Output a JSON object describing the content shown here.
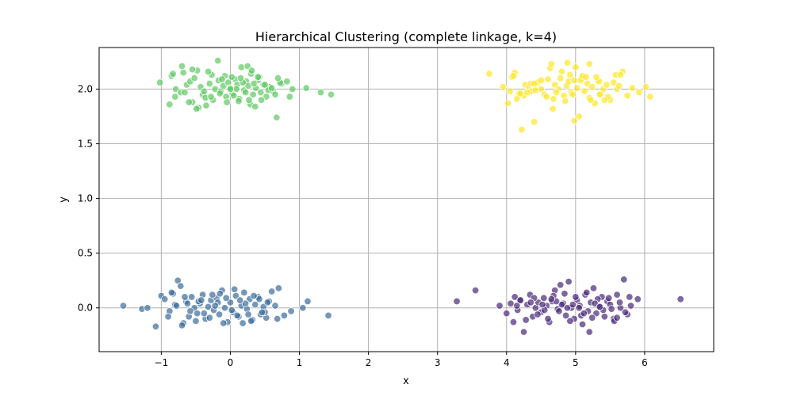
{
  "chart_data": {
    "type": "scatter",
    "title": "Hierarchical Clustering (complete linkage, k=4)",
    "xlabel": "x",
    "ylabel": "y",
    "xlim": [
      -1.9,
      7.0
    ],
    "ylim": [
      -0.4,
      2.38
    ],
    "xticks": [
      -1,
      0,
      1,
      2,
      3,
      4,
      5,
      6
    ],
    "yticks": [
      0.0,
      0.5,
      1.0,
      1.5,
      2.0
    ],
    "xtick_labels": [
      "−1",
      "0",
      "1",
      "2",
      "3",
      "4",
      "5",
      "6"
    ],
    "ytick_labels": [
      "0.0",
      "0.5",
      "1.0",
      "1.5",
      "2.0"
    ],
    "grid": true,
    "legend": "none",
    "point_alpha": 0.7,
    "series": [
      {
        "color": "#5ec962",
        "x": [
          -1.02,
          -0.85,
          -0.79,
          -0.72,
          -0.68,
          -0.63,
          -0.58,
          -0.52,
          -0.48,
          -0.43,
          -0.4,
          -0.36,
          -0.3,
          -0.27,
          -0.22,
          -0.18,
          -0.14,
          -0.1,
          -0.06,
          -0.03,
          0.0,
          0.03,
          0.07,
          0.1,
          0.13,
          0.16,
          0.2,
          0.23,
          0.26,
          0.3,
          0.33,
          0.37,
          0.4,
          0.44,
          0.48,
          0.52,
          0.57,
          0.62,
          0.67,
          0.74,
          0.82,
          0.9,
          1.1,
          1.31,
          1.46,
          -0.88,
          -0.8,
          -0.66,
          -0.55,
          -0.46,
          -0.35,
          -0.25,
          -0.15,
          -0.05,
          0.05,
          0.12,
          0.22,
          0.29,
          0.36,
          0.45,
          0.55,
          0.65,
          0.86,
          -0.6,
          -0.49,
          -0.38,
          -0.28,
          -0.17,
          -0.08,
          0.02,
          0.09,
          0.18,
          0.27,
          0.34,
          0.42,
          0.5,
          0.6,
          0.72,
          -0.7,
          -0.32,
          0.0,
          0.25,
          0.4,
          -0.12,
          0.15,
          0.31,
          -0.55,
          0.69,
          -0.83
        ],
        "y": [
          2.06,
          2.12,
          2.0,
          1.97,
          2.15,
          2.04,
          2.07,
          2.1,
          2.17,
          2.02,
          1.95,
          1.92,
          2.05,
          2.13,
          2.0,
          2.26,
          1.98,
          2.03,
          1.93,
          2.06,
          2.01,
          1.96,
          2.09,
          2.04,
          1.91,
          2.2,
          1.99,
          2.07,
          2.03,
          2.14,
          1.95,
          2.01,
          2.08,
          1.97,
          2.04,
          1.93,
          2.02,
          1.98,
          1.74,
          2.05,
          2.07,
          2.0,
          2.01,
          1.97,
          1.95,
          1.86,
          1.93,
          1.97,
          1.88,
          1.83,
          1.85,
          1.9,
          1.96,
          1.88,
          1.94,
          1.89,
          1.97,
          1.86,
          1.84,
          1.9,
          1.99,
          1.95,
          1.93,
          1.88,
          1.82,
          1.98,
          1.93,
          2.08,
          2.12,
          2.11,
          2.0,
          2.06,
          1.9,
          2.05,
          2.11,
          2.04,
          2.01,
          2.06,
          2.21,
          2.16,
          2.0,
          2.21,
          2.11,
          2.09,
          2.1,
          2.17,
          2.18,
          2.1,
          2.14
        ]
      },
      {
        "color": "#fde725",
        "x": [
          3.75,
          3.95,
          4.02,
          4.08,
          4.12,
          4.18,
          4.22,
          4.27,
          4.32,
          4.36,
          4.4,
          4.45,
          4.5,
          4.55,
          4.6,
          4.63,
          4.67,
          4.7,
          4.75,
          4.8,
          4.83,
          4.87,
          4.9,
          4.94,
          4.98,
          5.02,
          5.05,
          5.09,
          5.13,
          5.17,
          5.2,
          5.24,
          5.28,
          5.32,
          5.36,
          5.4,
          5.45,
          5.5,
          5.55,
          5.6,
          5.68,
          5.75,
          5.82,
          5.92,
          6.02,
          6.08,
          4.05,
          4.15,
          4.25,
          4.35,
          4.42,
          4.58,
          4.72,
          4.85,
          4.96,
          5.07,
          5.22,
          5.34,
          5.47,
          5.63,
          4.3,
          4.5,
          4.68,
          4.78,
          4.92,
          5.1,
          5.3,
          5.42,
          5.58,
          4.1,
          4.2,
          4.4,
          4.65,
          5.0,
          4.98,
          5.15,
          5.35,
          5.65,
          5.2,
          4.88
        ],
        "y": [
          2.14,
          2.02,
          1.87,
          2.11,
          2.15,
          1.96,
          1.63,
          2.04,
          2.01,
          1.98,
          1.7,
          2.06,
          2.0,
          1.95,
          2.09,
          2.19,
          1.82,
          2.04,
          2.0,
          2.16,
          1.94,
          2.03,
          2.07,
          1.97,
          1.71,
          2.01,
          1.75,
          2.1,
          1.98,
          2.05,
          1.92,
          2.02,
          1.87,
          2.08,
          1.96,
          2.0,
          2.04,
          1.9,
          2.06,
          2.0,
          2.16,
          1.94,
          2.01,
          1.97,
          2.02,
          1.93,
          1.98,
          1.91,
          1.94,
          2.05,
          1.99,
          1.93,
          1.97,
          1.89,
          1.95,
          2.08,
          1.9,
          2.07,
          1.93,
          2.03,
          1.97,
          2.08,
          1.91,
          2.1,
          2.13,
          2.12,
          2.11,
          1.9,
          2.13,
          2.12,
          1.96,
          2.05,
          2.23,
          2.2,
          2.08,
          2.11,
          1.95,
          2.13,
          2.23,
          2.24
        ]
      },
      {
        "color": "#3b6c9a",
        "x": [
          -1.55,
          -1.28,
          -1.2,
          -1.08,
          -1.0,
          -0.95,
          -0.88,
          -0.83,
          -0.8,
          -0.76,
          -0.72,
          -0.68,
          -0.64,
          -0.6,
          -0.56,
          -0.52,
          -0.48,
          -0.44,
          -0.4,
          -0.36,
          -0.32,
          -0.28,
          -0.24,
          -0.2,
          -0.16,
          -0.12,
          -0.08,
          -0.04,
          0.0,
          0.04,
          0.08,
          0.12,
          0.16,
          0.2,
          0.24,
          0.28,
          0.32,
          0.36,
          0.4,
          0.44,
          0.48,
          0.52,
          0.56,
          0.6,
          0.65,
          0.7,
          0.78,
          0.88,
          1.05,
          1.12,
          1.42,
          -0.9,
          -0.7,
          -0.5,
          -0.3,
          -0.1,
          0.1,
          0.3,
          0.5,
          0.68,
          -0.78,
          -0.58,
          -0.38,
          -0.18,
          0.02,
          0.22,
          0.42,
          -0.66,
          -0.46,
          -0.26,
          -0.06,
          0.14,
          0.34,
          0.54,
          -0.85,
          -0.15,
          0.06,
          0.18,
          -0.62,
          0.46,
          -0.42,
          0.26,
          -0.22
        ],
        "y": [
          0.02,
          -0.01,
          0.0,
          -0.17,
          0.11,
          0.08,
          -0.03,
          0.13,
          0.03,
          0.25,
          0.2,
          -0.14,
          0.06,
          -0.08,
          0.1,
          0.0,
          -0.05,
          0.04,
          0.12,
          -0.1,
          0.01,
          0.07,
          -0.02,
          0.09,
          -0.06,
          0.16,
          0.0,
          -0.13,
          0.05,
          -0.04,
          0.11,
          -0.08,
          0.02,
          0.14,
          -0.01,
          0.08,
          -0.11,
          0.03,
          0.1,
          -0.06,
          0.01,
          -0.09,
          0.06,
          0.15,
          0.02,
          0.18,
          -0.07,
          -0.03,
          0.0,
          0.06,
          -0.07,
          -0.08,
          -0.16,
          -0.12,
          -0.09,
          -0.14,
          -0.07,
          -0.12,
          -0.04,
          -0.1,
          0.02,
          -0.03,
          -0.05,
          0.05,
          -0.02,
          0.04,
          0.08,
          0.1,
          0.06,
          0.12,
          0.09,
          0.07,
          0.11,
          0.05,
          0.14,
          0.13,
          0.17,
          -0.14,
          0.04,
          -0.04,
          0.07,
          -0.06,
          0.02
        ]
      },
      {
        "color": "#482878",
        "x": [
          3.28,
          3.55,
          3.9,
          4.0,
          4.06,
          4.12,
          4.16,
          4.2,
          4.25,
          4.3,
          4.34,
          4.38,
          4.42,
          4.46,
          4.5,
          4.54,
          4.58,
          4.62,
          4.66,
          4.7,
          4.74,
          4.78,
          4.82,
          4.86,
          4.9,
          4.94,
          4.98,
          5.02,
          5.06,
          5.1,
          5.14,
          5.18,
          5.22,
          5.26,
          5.3,
          5.34,
          5.38,
          5.42,
          5.46,
          5.5,
          5.55,
          5.6,
          5.65,
          5.7,
          5.75,
          5.8,
          5.9,
          6.52,
          4.1,
          4.28,
          4.45,
          4.6,
          4.76,
          4.92,
          5.08,
          5.24,
          5.4,
          5.56,
          5.72,
          4.2,
          4.4,
          4.68,
          4.84,
          5.0,
          5.16,
          5.32,
          5.48,
          5.64,
          4.15,
          4.35,
          4.55,
          4.8,
          5.05,
          5.28,
          5.52,
          5.78,
          4.88,
          4.96,
          5.12,
          4.72,
          5.35,
          4.52,
          5.6,
          4.65,
          5.2
        ],
        "y": [
          0.06,
          0.16,
          0.02,
          -0.05,
          0.04,
          0.1,
          -0.02,
          0.07,
          -0.22,
          0.03,
          0.12,
          -0.08,
          0.0,
          0.05,
          -0.04,
          0.09,
          0.02,
          -0.13,
          0.06,
          0.16,
          -0.01,
          0.21,
          0.04,
          -0.07,
          0.24,
          0.0,
          -0.1,
          0.07,
          0.02,
          -0.15,
          0.12,
          -0.03,
          0.05,
          0.18,
          -0.05,
          0.01,
          0.1,
          -0.08,
          0.06,
          0.03,
          -0.1,
          0.12,
          0.0,
          0.26,
          -0.06,
          0.02,
          0.08,
          0.08,
          -0.13,
          -0.11,
          -0.06,
          -0.1,
          -0.03,
          -0.12,
          -0.07,
          -0.09,
          -0.02,
          -0.12,
          -0.04,
          0.07,
          0.09,
          0.11,
          0.13,
          0.1,
          0.14,
          0.08,
          0.09,
          0.05,
          0.02,
          0.05,
          -0.02,
          0.03,
          0.0,
          0.04,
          -0.01,
          0.1,
          0.0,
          0.03,
          -0.05,
          0.06,
          0.01,
          0.03,
          -0.09,
          0.08,
          -0.22
        ]
      }
    ]
  }
}
